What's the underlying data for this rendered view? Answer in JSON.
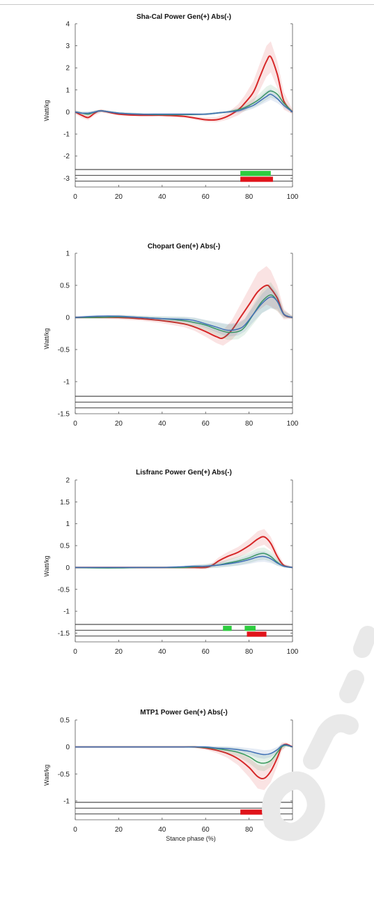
{
  "colors": {
    "red": "#d62728",
    "green": "#3a9a5b",
    "blue": "#3f6fb5",
    "green_bar": "#2ecc40",
    "red_bar": "#e0141b",
    "band_lines": "#222222",
    "watermark": "#e6e6e6"
  },
  "chart_data": [
    {
      "type": "line",
      "title": "Sha-Cal Power Gen(+) Abs(-)",
      "ylabel": "Watt/kg",
      "xlabel": "",
      "xlim": [
        0,
        100
      ],
      "ylim": [
        -3.4,
        4
      ],
      "xticks": [
        "0",
        "20",
        "40",
        "60",
        "80",
        "100"
      ],
      "yticks": [
        "4",
        "3",
        "2",
        "1",
        "0",
        "-1",
        "-2",
        "-3"
      ],
      "series": [
        {
          "color": "red",
          "x": [
            0,
            3,
            6,
            9,
            12,
            20,
            30,
            40,
            50,
            60,
            65,
            70,
            75,
            78,
            82,
            85,
            88,
            90,
            93,
            96,
            100
          ],
          "y": [
            0,
            -0.15,
            -0.25,
            -0.05,
            0.05,
            -0.1,
            -0.15,
            -0.15,
            -0.2,
            -0.35,
            -0.35,
            -0.2,
            0.1,
            0.4,
            0.9,
            1.6,
            2.3,
            2.5,
            1.7,
            0.5,
            0
          ],
          "band": [
            0.1,
            0.12,
            0.12,
            0.1,
            0.08,
            0.05,
            0.05,
            0.05,
            0.05,
            0.1,
            0.12,
            0.15,
            0.25,
            0.35,
            0.5,
            0.6,
            0.7,
            0.7,
            0.6,
            0.4,
            0.1
          ]
        },
        {
          "color": "green",
          "x": [
            0,
            3,
            6,
            9,
            12,
            20,
            30,
            40,
            50,
            60,
            65,
            70,
            75,
            78,
            82,
            85,
            88,
            90,
            93,
            96,
            100
          ],
          "y": [
            0,
            -0.05,
            -0.1,
            0,
            0.05,
            -0.05,
            -0.1,
            -0.12,
            -0.12,
            -0.1,
            -0.05,
            0,
            0.1,
            0.2,
            0.4,
            0.6,
            0.85,
            0.95,
            0.8,
            0.4,
            0
          ],
          "band": [
            0.05,
            0.08,
            0.1,
            0.08,
            0.05,
            0.05,
            0.05,
            0.05,
            0.05,
            0.05,
            0.05,
            0.05,
            0.1,
            0.15,
            0.2,
            0.25,
            0.3,
            0.3,
            0.25,
            0.15,
            0.05
          ]
        },
        {
          "color": "blue",
          "x": [
            0,
            3,
            6,
            9,
            12,
            20,
            30,
            40,
            50,
            60,
            65,
            70,
            75,
            78,
            82,
            85,
            88,
            90,
            93,
            96,
            100
          ],
          "y": [
            0,
            -0.05,
            -0.05,
            0,
            0.05,
            -0.05,
            -0.1,
            -0.1,
            -0.1,
            -0.1,
            -0.05,
            0,
            0.05,
            0.15,
            0.3,
            0.5,
            0.7,
            0.8,
            0.6,
            0.3,
            0
          ],
          "band": [
            0.05,
            0.06,
            0.08,
            0.06,
            0.05,
            0.05,
            0.05,
            0.05,
            0.05,
            0.05,
            0.05,
            0.05,
            0.1,
            0.12,
            0.15,
            0.2,
            0.25,
            0.25,
            0.2,
            0.12,
            0.05
          ]
        }
      ],
      "sig_bars": [
        {
          "color": "green_bar",
          "row": 1,
          "x0": 76,
          "x1": 90
        },
        {
          "color": "red_bar",
          "row": 2,
          "x0": 76,
          "x1": 91
        }
      ]
    },
    {
      "type": "line",
      "title": "Chopart Gen(+) Abs(-)",
      "ylabel": "Watt/kg",
      "xlabel": "",
      "xlim": [
        0,
        100
      ],
      "ylim": [
        -1.5,
        1
      ],
      "xticks": [
        "0",
        "20",
        "40",
        "60",
        "80",
        "100"
      ],
      "yticks": [
        "1",
        "0.5",
        "0",
        "-0.5",
        "-1",
        "-1.5"
      ],
      "series": [
        {
          "color": "red",
          "x": [
            0,
            10,
            20,
            30,
            40,
            50,
            55,
            60,
            65,
            68,
            72,
            76,
            80,
            84,
            88,
            90,
            93,
            96,
            100
          ],
          "y": [
            0,
            0,
            0,
            -0.02,
            -0.05,
            -0.1,
            -0.15,
            -0.22,
            -0.3,
            -0.32,
            -0.2,
            0,
            0.2,
            0.4,
            0.5,
            0.45,
            0.3,
            0.05,
            0
          ],
          "band": [
            0.02,
            0.02,
            0.03,
            0.03,
            0.04,
            0.05,
            0.06,
            0.08,
            0.1,
            0.12,
            0.15,
            0.2,
            0.25,
            0.3,
            0.3,
            0.28,
            0.2,
            0.08,
            0.02
          ]
        },
        {
          "color": "green",
          "x": [
            0,
            10,
            20,
            30,
            40,
            50,
            55,
            60,
            65,
            70,
            75,
            78,
            82,
            86,
            90,
            93,
            96,
            100
          ],
          "y": [
            0,
            0,
            0.01,
            0,
            -0.02,
            -0.05,
            -0.08,
            -0.12,
            -0.18,
            -0.23,
            -0.22,
            -0.15,
            0.05,
            0.25,
            0.35,
            0.25,
            0.05,
            0
          ],
          "band": [
            0.02,
            0.02,
            0.03,
            0.03,
            0.04,
            0.06,
            0.07,
            0.08,
            0.1,
            0.12,
            0.12,
            0.12,
            0.15,
            0.18,
            0.2,
            0.15,
            0.06,
            0.02
          ]
        },
        {
          "color": "blue",
          "x": [
            0,
            10,
            20,
            30,
            40,
            50,
            55,
            60,
            65,
            70,
            75,
            78,
            82,
            86,
            90,
            93,
            96,
            100
          ],
          "y": [
            0,
            0.02,
            0.02,
            0,
            -0.02,
            -0.03,
            -0.05,
            -0.1,
            -0.15,
            -0.2,
            -0.18,
            -0.12,
            0.05,
            0.22,
            0.32,
            0.25,
            0.05,
            0
          ],
          "band": [
            0.02,
            0.02,
            0.02,
            0.02,
            0.03,
            0.04,
            0.05,
            0.06,
            0.08,
            0.1,
            0.1,
            0.1,
            0.12,
            0.15,
            0.18,
            0.12,
            0.05,
            0.02
          ]
        }
      ],
      "sig_bars": []
    },
    {
      "type": "line",
      "title": "Lisfranc Power Gen(+) Abs(-)",
      "ylabel": "Watt/kg",
      "xlabel": "",
      "xlim": [
        0,
        100
      ],
      "ylim": [
        -1.7,
        2
      ],
      "xticks": [
        "0",
        "20",
        "40",
        "60",
        "80",
        "100"
      ],
      "yticks": [
        "2",
        "1.5",
        "1",
        "0.5",
        "0",
        "-0.5",
        "-1",
        "-1.5"
      ],
      "series": [
        {
          "color": "red",
          "x": [
            0,
            10,
            20,
            30,
            40,
            50,
            55,
            60,
            63,
            66,
            70,
            75,
            80,
            84,
            87,
            90,
            93,
            96,
            100
          ],
          "y": [
            0,
            0,
            0,
            0,
            0,
            0,
            0,
            0,
            0.05,
            0.15,
            0.25,
            0.35,
            0.5,
            0.65,
            0.7,
            0.55,
            0.25,
            0.05,
            0
          ],
          "band": [
            0.02,
            0.02,
            0.02,
            0.02,
            0.02,
            0.02,
            0.03,
            0.04,
            0.05,
            0.08,
            0.1,
            0.12,
            0.15,
            0.18,
            0.18,
            0.15,
            0.1,
            0.04,
            0.02
          ]
        },
        {
          "color": "green",
          "x": [
            0,
            10,
            20,
            30,
            40,
            50,
            55,
            60,
            65,
            70,
            75,
            80,
            84,
            87,
            90,
            93,
            96,
            100
          ],
          "y": [
            0,
            -0.01,
            -0.01,
            0,
            0,
            0,
            0.02,
            0.03,
            0.05,
            0.1,
            0.15,
            0.22,
            0.3,
            0.32,
            0.25,
            0.12,
            0.03,
            0
          ],
          "band": [
            0.02,
            0.02,
            0.02,
            0.02,
            0.02,
            0.03,
            0.04,
            0.05,
            0.06,
            0.08,
            0.1,
            0.12,
            0.14,
            0.14,
            0.12,
            0.08,
            0.03,
            0.02
          ]
        },
        {
          "color": "blue",
          "x": [
            0,
            10,
            20,
            30,
            40,
            50,
            55,
            60,
            65,
            70,
            75,
            80,
            84,
            87,
            90,
            93,
            96,
            100
          ],
          "y": [
            0,
            0,
            0,
            0,
            0,
            0.02,
            0.03,
            0.03,
            0.05,
            0.08,
            0.12,
            0.18,
            0.24,
            0.25,
            0.2,
            0.1,
            0.03,
            0
          ],
          "band": [
            0.02,
            0.02,
            0.02,
            0.02,
            0.02,
            0.02,
            0.03,
            0.04,
            0.05,
            0.06,
            0.08,
            0.1,
            0.12,
            0.12,
            0.1,
            0.06,
            0.03,
            0.02
          ]
        }
      ],
      "sig_bars": [
        {
          "color": "green_bar",
          "row": 1,
          "x0": 68,
          "x1": 72
        },
        {
          "color": "green_bar",
          "row": 1,
          "x0": 78,
          "x1": 83
        },
        {
          "color": "red_bar",
          "row": 2,
          "x0": 79,
          "x1": 88
        }
      ]
    },
    {
      "type": "line",
      "title": "MTP1 Power Gen(+) Abs(-)",
      "ylabel": "Watt/kg",
      "xlabel": "Stance phase (%)",
      "xlim": [
        0,
        100
      ],
      "ylim": [
        -1.35,
        0.5
      ],
      "xticks": [
        "0",
        "20",
        "40",
        "60",
        "80",
        "100"
      ],
      "yticks": [
        "0.5",
        "0",
        "-0.5",
        "-1"
      ],
      "series": [
        {
          "color": "red",
          "x": [
            0,
            10,
            20,
            30,
            40,
            50,
            55,
            60,
            65,
            70,
            75,
            80,
            84,
            87,
            90,
            93,
            95,
            97,
            100
          ],
          "y": [
            0,
            0,
            0,
            0,
            0,
            0,
            0,
            -0.02,
            -0.06,
            -0.12,
            -0.22,
            -0.38,
            -0.55,
            -0.58,
            -0.45,
            -0.2,
            0,
            0.05,
            0
          ],
          "band": [
            0.01,
            0.01,
            0.01,
            0.01,
            0.01,
            0.01,
            0.02,
            0.03,
            0.05,
            0.08,
            0.12,
            0.18,
            0.22,
            0.22,
            0.2,
            0.15,
            0.08,
            0.04,
            0.01
          ]
        },
        {
          "color": "green",
          "x": [
            0,
            10,
            20,
            30,
            40,
            50,
            55,
            60,
            65,
            70,
            75,
            80,
            84,
            87,
            90,
            93,
            95,
            97,
            100
          ],
          "y": [
            0,
            0,
            0,
            0,
            0,
            0,
            0,
            -0.01,
            -0.03,
            -0.06,
            -0.1,
            -0.18,
            -0.28,
            -0.3,
            -0.25,
            -0.1,
            0,
            0.03,
            0
          ],
          "band": [
            0.01,
            0.01,
            0.01,
            0.01,
            0.01,
            0.01,
            0.02,
            0.02,
            0.04,
            0.06,
            0.08,
            0.12,
            0.15,
            0.15,
            0.12,
            0.08,
            0.05,
            0.03,
            0.01
          ]
        },
        {
          "color": "blue",
          "x": [
            0,
            10,
            20,
            30,
            40,
            50,
            55,
            60,
            65,
            70,
            75,
            80,
            84,
            87,
            90,
            93,
            95,
            97,
            100
          ],
          "y": [
            0,
            0,
            0,
            0,
            0,
            0,
            0,
            0,
            -0.02,
            -0.03,
            -0.05,
            -0.08,
            -0.12,
            -0.14,
            -0.12,
            -0.05,
            0.02,
            0.04,
            0
          ],
          "band": [
            0.01,
            0.01,
            0.01,
            0.01,
            0.01,
            0.01,
            0.01,
            0.02,
            0.03,
            0.04,
            0.05,
            0.06,
            0.08,
            0.08,
            0.07,
            0.05,
            0.03,
            0.02,
            0.01
          ]
        }
      ],
      "sig_bars": [
        {
          "color": "red_bar",
          "row": 2,
          "x0": 76,
          "x1": 86
        }
      ]
    }
  ]
}
